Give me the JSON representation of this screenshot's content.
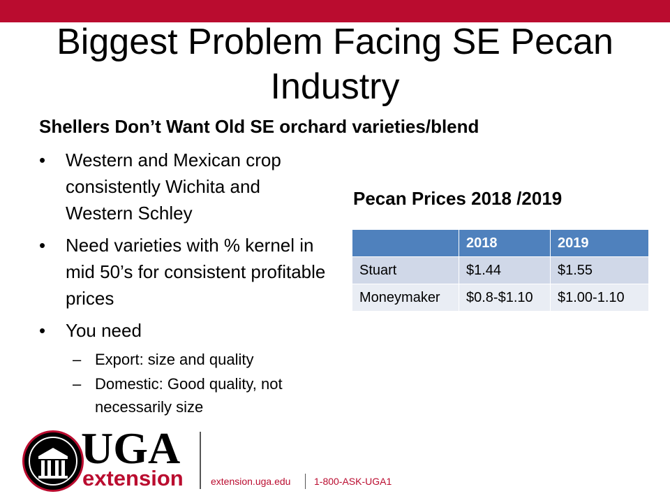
{
  "title": "Biggest Problem Facing SE Pecan Industry",
  "subtitle": "Shellers Don’t Want Old SE orchard varieties/blend",
  "bullets": [
    "Western and Mexican crop consistently Wichita and Western Schley",
    "Need varieties with % kernel in mid 50’s for consistent profitable prices",
    "You need"
  ],
  "sub_bullets": [
    "Export: size and quality",
    "Domestic: Good quality, not necessarily size"
  ],
  "bullet_glyph": "•",
  "dash_glyph": "–",
  "table": {
    "title": "Pecan Prices 2018 /2019",
    "headers": [
      "",
      "2018",
      "2019"
    ],
    "rows": [
      [
        "Stuart",
        "$1.44",
        "$1.55"
      ],
      [
        "Moneymaker",
        "$0.8-$1.10",
        "$1.00-1.10"
      ]
    ]
  },
  "footer": {
    "logo_text": "UGA",
    "logo_sub": "extension",
    "url": "extension.uga.edu",
    "phone": "1-800-ASK-UGA1"
  },
  "colors": {
    "accent": "#ba0c2f",
    "table_header": "#4f81bd",
    "table_row_1": "#d0d8e8",
    "table_row_2": "#e9edf4"
  }
}
